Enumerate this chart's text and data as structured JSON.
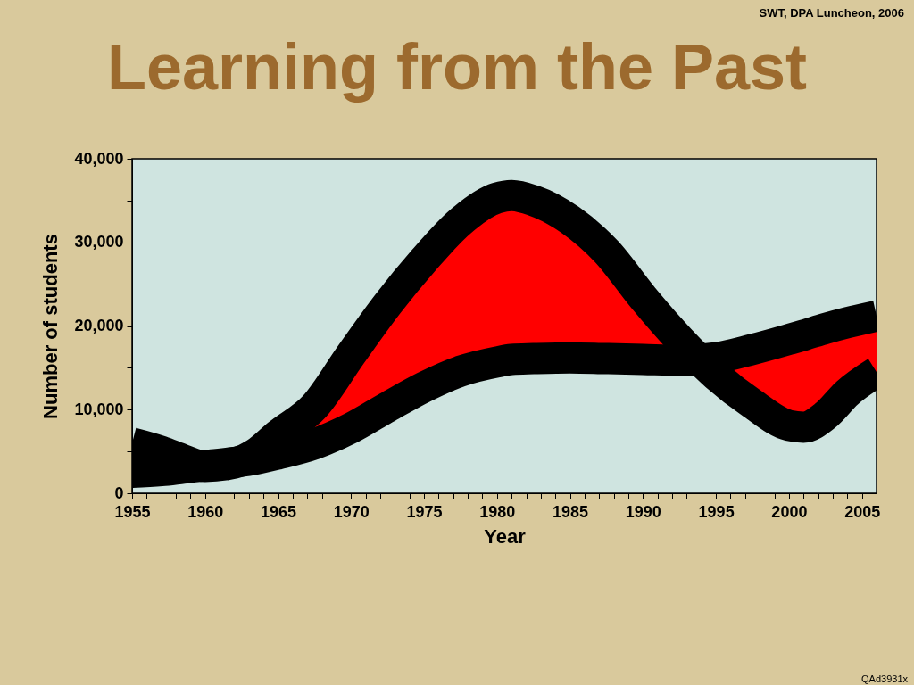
{
  "chart_data": {
    "type": "line",
    "title": "Learning from the Past",
    "xlabel": "Year",
    "ylabel": "Number of students",
    "annotations": [
      "SWT, DPA Luncheon, 2006",
      "QAd3931x"
    ],
    "x": [
      1955,
      1957,
      1958.5,
      1960,
      1962,
      1963.5,
      1965,
      1967.5,
      1970,
      1972.5,
      1975,
      1977.5,
      1980,
      1981,
      1982.5,
      1985,
      1987.5,
      1990,
      1992.5,
      1995,
      1997.5,
      2000,
      2001,
      2002.5,
      2004,
      2006
    ],
    "series": [
      {
        "color": "#000000",
        "values": [
          6000,
          5000,
          4000,
          3200,
          3600,
          4800,
          7000,
          10400,
          16600,
          22600,
          27900,
          32500,
          35300,
          35600,
          35000,
          32700,
          28900,
          23400,
          18400,
          14100,
          10700,
          8100,
          7900,
          9300,
          12000,
          14500
        ],
        "lower": [
          2500,
          2700,
          3000,
          3300,
          3700,
          4100,
          4700,
          5900,
          7800,
          10300,
          12700,
          14600,
          15700,
          16000,
          16100,
          16200,
          16100,
          16000,
          15900,
          16200,
          17200,
          18400,
          18900,
          19700,
          20400,
          21200
        ],
        "upper": [
          6000,
          5000,
          4000,
          3200,
          3600,
          4800,
          7000,
          10400,
          16600,
          22600,
          27900,
          32500,
          35300,
          35600,
          35000,
          32700,
          28900,
          23400,
          18400,
          14100,
          10700,
          8100,
          7900,
          9300,
          12000,
          14500
        ]
      },
      {
        "color": "#000000",
        "values": [
          2500,
          2700,
          3000,
          3300,
          3700,
          4100,
          4700,
          5900,
          7800,
          10300,
          12700,
          14600,
          15700,
          16000,
          16100,
          16200,
          16100,
          16000,
          15900,
          16200,
          17200,
          18400,
          18900,
          19700,
          20400,
          21200
        ]
      }
    ],
    "xlim": [
      1955,
      2006
    ],
    "xticks": [
      1955,
      {
        "value": 1956,
        "label": null
      },
      {
        "value": 1957,
        "label": null
      },
      {
        "value": 1958,
        "label": null
      },
      {
        "value": 1959,
        "label": null
      },
      1960,
      {
        "value": 1961,
        "label": null
      },
      {
        "value": 1962,
        "label": null
      },
      {
        "value": 1963,
        "label": null
      },
      {
        "value": 1964,
        "label": null
      },
      1965,
      {
        "value": 1966,
        "label": null
      },
      {
        "value": 1967,
        "label": null
      },
      {
        "value": 1968,
        "label": null
      },
      {
        "value": 1969,
        "label": null
      },
      1970,
      {
        "value": 1971,
        "label": null
      },
      {
        "value": 1972,
        "label": null
      },
      {
        "value": 1973,
        "label": null
      },
      {
        "value": 1974,
        "label": null
      },
      1975,
      {
        "value": 1976,
        "label": null
      },
      {
        "value": 1977,
        "label": null
      },
      {
        "value": 1978,
        "label": null
      },
      {
        "value": 1979,
        "label": null
      },
      1980,
      {
        "value": 1981,
        "label": null
      },
      {
        "value": 1982,
        "label": null
      },
      {
        "value": 1983,
        "label": null
      },
      {
        "value": 1984,
        "label": null
      },
      1985,
      {
        "value": 1986,
        "label": null
      },
      {
        "value": 1987,
        "label": null
      },
      {
        "value": 1988,
        "label": null
      },
      {
        "value": 1989,
        "label": null
      },
      1990,
      {
        "value": 1991,
        "label": null
      },
      {
        "value": 1992,
        "label": null
      },
      {
        "value": 1993,
        "label": null
      },
      {
        "value": 1994,
        "label": null
      },
      1995,
      {
        "value": 1996,
        "label": null
      },
      {
        "value": 1997,
        "label": null
      },
      {
        "value": 1998,
        "label": null
      },
      {
        "value": 1999,
        "label": null
      },
      2000,
      {
        "value": 2001,
        "label": null
      },
      {
        "value": 2002,
        "label": null
      },
      {
        "value": 2003,
        "label": null
      },
      {
        "value": 2004,
        "label": null
      },
      2005,
      {
        "value": 2006,
        "label": null
      }
    ],
    "ylim": [
      0,
      40000
    ],
    "yticks": [
      0,
      {
        "value": 5000,
        "label": null
      },
      {
        "value": 10000,
        "label": "10,000"
      },
      {
        "value": 15000,
        "label": null
      },
      {
        "value": 20000,
        "label": "20,000"
      },
      {
        "value": 25000,
        "label": null
      },
      {
        "value": 30000,
        "label": "30,000"
      },
      {
        "value": 35000,
        "label": null
      },
      {
        "value": 40000,
        "label": "40,000"
      }
    ]
  }
}
